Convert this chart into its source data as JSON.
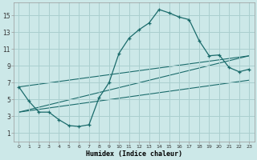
{
  "xlabel": "Humidex (Indice chaleur)",
  "bg_color": "#cce8e8",
  "grid_color": "#aacfcf",
  "line_color": "#1a6b6b",
  "xlim": [
    -0.5,
    23.5
  ],
  "ylim": [
    0.0,
    16.5
  ],
  "xticks": [
    0,
    1,
    2,
    3,
    4,
    5,
    6,
    7,
    8,
    9,
    10,
    11,
    12,
    13,
    14,
    15,
    16,
    17,
    18,
    19,
    20,
    21,
    22,
    23
  ],
  "yticks": [
    1,
    3,
    5,
    7,
    9,
    11,
    13,
    15
  ],
  "main_x": [
    0,
    1,
    2,
    3,
    4,
    5,
    6,
    7,
    8,
    9,
    10,
    11,
    12,
    13,
    14,
    15,
    16,
    17,
    18,
    19,
    20,
    21,
    22,
    23
  ],
  "main_y": [
    6.5,
    4.8,
    3.5,
    3.5,
    2.6,
    1.9,
    1.8,
    2.0,
    5.2,
    7.0,
    10.5,
    12.3,
    13.3,
    14.1,
    15.7,
    15.3,
    14.8,
    14.5,
    12.0,
    10.2,
    10.3,
    8.8,
    8.3,
    8.6
  ],
  "line1_x": [
    0,
    23
  ],
  "line1_y": [
    3.5,
    10.2
  ],
  "line2_x": [
    0,
    23
  ],
  "line2_y": [
    3.5,
    7.3
  ],
  "line3_x": [
    0,
    23
  ],
  "line3_y": [
    6.5,
    10.2
  ]
}
